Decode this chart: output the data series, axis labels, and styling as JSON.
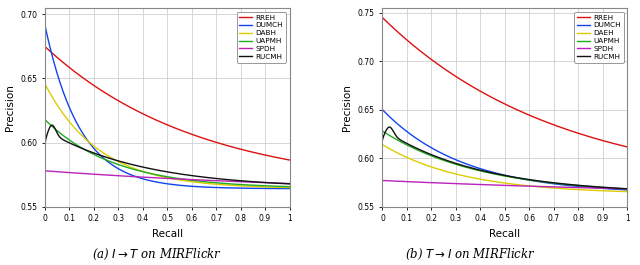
{
  "subplot_a": {
    "title_pre": "(a) ",
    "title_math": "I \\rightarrow T",
    "title_post": " on MIRFlickr",
    "ylim": [
      0.55,
      0.705
    ],
    "yticks": [
      0.55,
      0.6,
      0.65,
      0.7
    ],
    "yticklabels": [
      "0.55",
      "0.60",
      "0.65",
      "0.70"
    ],
    "curves": [
      {
        "name": "RREH",
        "color": "#dd1111",
        "start": 0.675,
        "end": 0.564,
        "decay": 1.6
      },
      {
        "name": "DUMCH",
        "color": "#1144ee",
        "start": 0.692,
        "end": 0.564,
        "decay": 7.0
      },
      {
        "name": "DABH",
        "color": "#ddcc00",
        "start": 0.646,
        "end": 0.564,
        "decay": 4.5
      },
      {
        "name": "UAPMH",
        "color": "#22aa22",
        "start": 0.618,
        "end": 0.564,
        "decay": 3.5
      },
      {
        "name": "SPDH",
        "color": "#bb22bb",
        "start": 0.578,
        "end": 0.56,
        "decay": 0.8
      },
      {
        "name": "RUCMH",
        "color": "#111111",
        "start": 0.61,
        "end": 0.564,
        "decay": 2.5,
        "bump": true
      }
    ]
  },
  "subplot_b": {
    "title_pre": "(b) ",
    "title_math": "T \\rightarrow I",
    "title_post": " on MIRFlickr",
    "ylim": [
      0.55,
      0.755
    ],
    "yticks": [
      0.55,
      0.6,
      0.65,
      0.7,
      0.75
    ],
    "yticklabels": [
      "0.55",
      "0.60",
      "0.65",
      "0.70",
      "0.75"
    ],
    "curves": [
      {
        "name": "RREH",
        "color": "#dd1111",
        "start": 0.745,
        "end": 0.568,
        "decay": 1.4
      },
      {
        "name": "DUMCH",
        "color": "#1144ee",
        "start": 0.65,
        "end": 0.563,
        "decay": 3.0
      },
      {
        "name": "DAEH",
        "color": "#ddcc00",
        "start": 0.614,
        "end": 0.563,
        "decay": 3.0
      },
      {
        "name": "UAPMH",
        "color": "#22aa22",
        "start": 0.628,
        "end": 0.563,
        "decay": 2.5
      },
      {
        "name": "SPDH",
        "color": "#bb22bb",
        "start": 0.577,
        "end": 0.56,
        "decay": 0.7
      },
      {
        "name": "RUCMH",
        "color": "#111111",
        "start": 0.63,
        "end": 0.563,
        "decay": 2.5,
        "bump": true
      }
    ]
  },
  "xlabel": "Recall",
  "ylabel": "Precision",
  "xlim": [
    0.0,
    1.0
  ],
  "xticks": [
    0.0,
    0.1,
    0.2,
    0.3,
    0.4,
    0.5,
    0.6,
    0.7,
    0.8,
    0.9,
    1.0
  ],
  "xticklabels": [
    "0",
    "0.1",
    "0.2",
    "0.3",
    "0.4",
    "0.5",
    "0.6",
    "0.7",
    "0.8",
    "0.9",
    "1"
  ],
  "grid_color": "#d0d0d0",
  "bg_color": "#ffffff"
}
